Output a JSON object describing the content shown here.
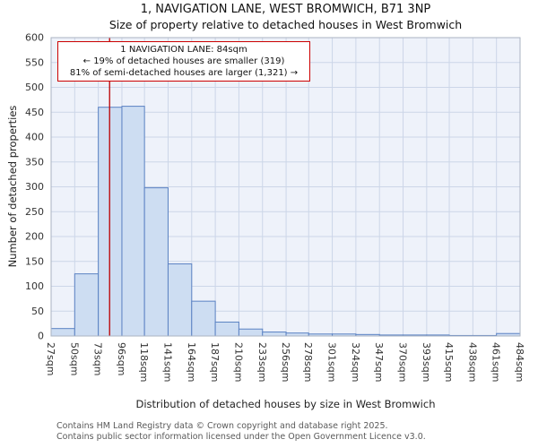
{
  "title": "1, NAVIGATION LANE, WEST BROMWICH, B71 3NP",
  "subtitle": "Size of property relative to detached houses in West Bromwich",
  "chart_data": {
    "type": "bar",
    "title": "1, NAVIGATION LANE, WEST BROMWICH, B71 3NP",
    "subtitle": "Size of property relative to detached houses in West Bromwich",
    "xlabel": "Distribution of detached houses by size in West Bromwich",
    "ylabel": "Number of detached properties",
    "ylim": [
      0,
      600
    ],
    "ytick_step": 50,
    "grid": true,
    "legend": false,
    "bin_edges": [
      27,
      50,
      73,
      96,
      118,
      141,
      164,
      187,
      210,
      233,
      256,
      278,
      301,
      324,
      347,
      370,
      393,
      415,
      438,
      461,
      484
    ],
    "categories": [
      "27sqm",
      "50sqm",
      "73sqm",
      "96sqm",
      "118sqm",
      "141sqm",
      "164sqm",
      "187sqm",
      "210sqm",
      "233sqm",
      "256sqm",
      "278sqm",
      "301sqm",
      "324sqm",
      "347sqm",
      "370sqm",
      "393sqm",
      "415sqm",
      "438sqm",
      "461sqm",
      "484sqm"
    ],
    "values": [
      15,
      125,
      460,
      462,
      298,
      145,
      70,
      28,
      14,
      8,
      6,
      4,
      4,
      3,
      2,
      2,
      2,
      1,
      1,
      5
    ],
    "marker": {
      "value": 84,
      "label": "1 NAVIGATION LANE: 84sqm"
    },
    "annotation": {
      "line1": "1 NAVIGATION LANE: 84sqm",
      "line2": "← 19% of detached houses are smaller (319)",
      "line3": "81% of semi-detached houses are larger (1,321) →"
    },
    "colors": {
      "plot_bg": "#eef2fa",
      "grid": "#ccd6e8",
      "bar_fill": "#cdddf2",
      "bar_stroke": "#5b82c3",
      "marker": "#bb0000",
      "axis": "#aab3c2",
      "tick_text": "#333333",
      "annotation_border": "#cc0000"
    }
  },
  "footer": {
    "line1": "Contains HM Land Registry data © Crown copyright and database right 2025.",
    "line2": "Contains public sector information licensed under the Open Government Licence v3.0."
  }
}
